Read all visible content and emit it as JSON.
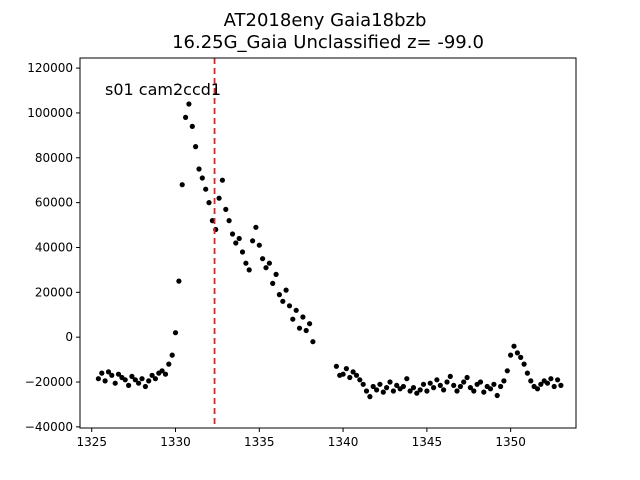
{
  "chart_data": {
    "type": "scatter",
    "title_line1": "AT2018eny  Gaia18bzb",
    "title_line2": "16.25G_Gaia Unclassified z= -99.0",
    "annotation": "s01 cam2ccd1",
    "xlabel": "",
    "ylabel": "",
    "xlim": [
      1324.3,
      1353.9
    ],
    "ylim": [
      -40500,
      124500
    ],
    "xticks": [
      "1325",
      "1330",
      "1335",
      "1340",
      "1345",
      "1350"
    ],
    "xtick_values": [
      1325,
      1330,
      1335,
      1340,
      1345,
      1350
    ],
    "yticks": [
      "−40000",
      "−20000",
      "0",
      "20000",
      "40000",
      "60000",
      "80000",
      "100000",
      "120000"
    ],
    "ytick_values": [
      -40000,
      -20000,
      0,
      20000,
      40000,
      60000,
      80000,
      100000,
      120000
    ],
    "vline_x": 1332.33,
    "vline_color": "#d62728",
    "point_color": "#000000",
    "grid": false,
    "series": [
      {
        "x": [
          1325.4,
          1325.6,
          1325.8,
          1326.0,
          1326.2,
          1326.4,
          1326.6,
          1326.8,
          1327.0,
          1327.2,
          1327.4,
          1327.6,
          1327.8,
          1328.0,
          1328.2,
          1328.4,
          1328.6,
          1328.8,
          1329.0,
          1329.2,
          1329.4,
          1329.6,
          1329.8,
          1330.0,
          1330.2,
          1330.4,
          1330.6,
          1330.8,
          1331.0,
          1331.2,
          1331.4,
          1331.6,
          1331.8,
          1332.0,
          1332.2,
          1332.4,
          1332.6,
          1332.8,
          1333.0,
          1333.2,
          1333.4,
          1333.6,
          1333.8,
          1334.0,
          1334.2,
          1334.4,
          1334.6,
          1334.8,
          1335.0,
          1335.2,
          1335.4,
          1335.6,
          1335.8,
          1336.0,
          1336.2,
          1336.4,
          1336.6,
          1336.8,
          1337.0,
          1337.2,
          1337.4,
          1337.6,
          1337.8,
          1338.0,
          1338.2,
          1339.6,
          1339.8,
          1340.0,
          1340.2,
          1340.4,
          1340.6,
          1340.8,
          1341.0,
          1341.2,
          1341.4,
          1341.6,
          1341.8,
          1342.0,
          1342.2,
          1342.4,
          1342.6,
          1342.8,
          1343.0,
          1343.2,
          1343.4,
          1343.6,
          1343.8,
          1344.0,
          1344.2,
          1344.4,
          1344.6,
          1344.8,
          1345.0,
          1345.2,
          1345.4,
          1345.6,
          1345.8,
          1346.0,
          1346.2,
          1346.4,
          1346.6,
          1346.8,
          1347.0,
          1347.2,
          1347.4,
          1347.6,
          1347.8,
          1348.0,
          1348.2,
          1348.4,
          1348.6,
          1348.8,
          1349.0,
          1349.2,
          1349.4,
          1349.6,
          1349.8,
          1350.0,
          1350.2,
          1350.4,
          1350.6,
          1350.8,
          1351.0,
          1351.2,
          1351.4,
          1351.6,
          1351.8,
          1352.0,
          1352.2,
          1352.4,
          1352.6,
          1352.8,
          1353.0
        ],
        "y": [
          -18500,
          -16000,
          -19500,
          -15500,
          -17000,
          -20500,
          -16500,
          -18000,
          -19000,
          -21500,
          -17500,
          -19000,
          -20500,
          -18500,
          -22000,
          -19500,
          -17000,
          -18500,
          -16000,
          -15000,
          -16500,
          -12000,
          -8000,
          2000,
          25000,
          68000,
          98000,
          104000,
          94000,
          85000,
          75000,
          71000,
          66000,
          60000,
          52000,
          48000,
          62000,
          70000,
          57000,
          52000,
          46000,
          42000,
          44000,
          38000,
          33000,
          30000,
          43000,
          49000,
          41000,
          35000,
          31000,
          33000,
          24000,
          28000,
          19000,
          16000,
          21000,
          14000,
          8000,
          12000,
          4000,
          9000,
          3000,
          6000,
          -2000,
          -13000,
          -17000,
          -16500,
          -14000,
          -18000,
          -15500,
          -17000,
          -19000,
          -21000,
          -24000,
          -26500,
          -22000,
          -23500,
          -21000,
          -24500,
          -22500,
          -20000,
          -24000,
          -21500,
          -23000,
          -22000,
          -18500,
          -24000,
          -22500,
          -25000,
          -23500,
          -21000,
          -24000,
          -20500,
          -22500,
          -19000,
          -21500,
          -23500,
          -20000,
          -17500,
          -21500,
          -24000,
          -22000,
          -20000,
          -18000,
          -22500,
          -24000,
          -21000,
          -20000,
          -24500,
          -22000,
          -23000,
          -21000,
          -26000,
          -22000,
          -19500,
          -15000,
          -8000,
          -4000,
          -7000,
          -9000,
          -12000,
          -16000,
          -19500,
          -22000,
          -23000,
          -21000,
          -19500,
          -20500,
          -18500,
          -22000,
          -19000,
          -21500
        ]
      }
    ]
  }
}
